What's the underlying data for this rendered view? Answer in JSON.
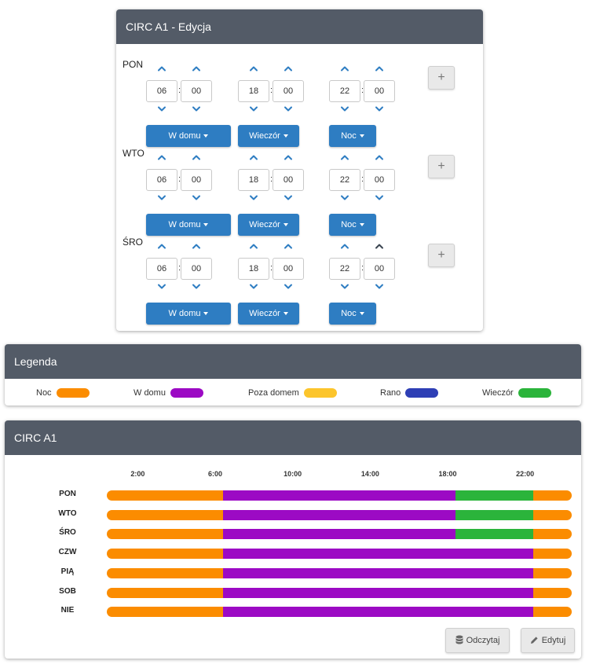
{
  "edit": {
    "title": "CIRC A1 - Edycja",
    "days": [
      {
        "label": "PON",
        "slots": [
          {
            "h": "06",
            "m": "00",
            "mode": "W domu"
          },
          {
            "h": "18",
            "m": "00",
            "mode": "Wieczór"
          },
          {
            "h": "22",
            "m": "00",
            "mode": "Noc"
          }
        ]
      },
      {
        "label": "WTO",
        "slots": [
          {
            "h": "06",
            "m": "00",
            "mode": "W domu"
          },
          {
            "h": "18",
            "m": "00",
            "mode": "Wieczór"
          },
          {
            "h": "22",
            "m": "00",
            "mode": "Noc"
          }
        ]
      },
      {
        "label": "ŚRO",
        "slots": [
          {
            "h": "06",
            "m": "00",
            "mode": "W domu"
          },
          {
            "h": "18",
            "m": "00",
            "mode": "Wieczór"
          },
          {
            "h": "22",
            "m": "00",
            "mode": "Noc"
          }
        ]
      }
    ],
    "colon": ":",
    "plus_label": "+"
  },
  "legend": {
    "title": "Legenda",
    "items": [
      {
        "label": "Noc",
        "color": "#fb8c00"
      },
      {
        "label": "W domu",
        "color": "#9c0ac4"
      },
      {
        "label": "Poza domem",
        "color": "#fcc52c"
      },
      {
        "label": "Rano",
        "color": "#2e3fb5"
      },
      {
        "label": "Wieczór",
        "color": "#2bb43b"
      }
    ]
  },
  "timeline": {
    "title": "CIRC A1",
    "hour_labels": [
      "2:00",
      "6:00",
      "10:00",
      "14:00",
      "18:00",
      "22:00"
    ],
    "hour_values": [
      2,
      6,
      10,
      14,
      18,
      22
    ],
    "rows": [
      {
        "label": "PON",
        "segments": [
          {
            "from": 0,
            "to": 6,
            "mode": "Noc"
          },
          {
            "from": 6,
            "to": 18,
            "mode": "W domu"
          },
          {
            "from": 18,
            "to": 22,
            "mode": "Wieczór"
          },
          {
            "from": 22,
            "to": 24,
            "mode": "Noc"
          }
        ]
      },
      {
        "label": "WTO",
        "segments": [
          {
            "from": 0,
            "to": 6,
            "mode": "Noc"
          },
          {
            "from": 6,
            "to": 18,
            "mode": "W domu"
          },
          {
            "from": 18,
            "to": 22,
            "mode": "Wieczór"
          },
          {
            "from": 22,
            "to": 24,
            "mode": "Noc"
          }
        ]
      },
      {
        "label": "ŚRO",
        "segments": [
          {
            "from": 0,
            "to": 6,
            "mode": "Noc"
          },
          {
            "from": 6,
            "to": 18,
            "mode": "W domu"
          },
          {
            "from": 18,
            "to": 22,
            "mode": "Wieczór"
          },
          {
            "from": 22,
            "to": 24,
            "mode": "Noc"
          }
        ]
      },
      {
        "label": "CZW",
        "segments": [
          {
            "from": 0,
            "to": 6,
            "mode": "Noc"
          },
          {
            "from": 6,
            "to": 22,
            "mode": "W domu"
          },
          {
            "from": 22,
            "to": 24,
            "mode": "Noc"
          }
        ]
      },
      {
        "label": "PIĄ",
        "segments": [
          {
            "from": 0,
            "to": 6,
            "mode": "Noc"
          },
          {
            "from": 6,
            "to": 22,
            "mode": "W domu"
          },
          {
            "from": 22,
            "to": 24,
            "mode": "Noc"
          }
        ]
      },
      {
        "label": "SOB",
        "segments": [
          {
            "from": 0,
            "to": 6,
            "mode": "Noc"
          },
          {
            "from": 6,
            "to": 22,
            "mode": "W domu"
          },
          {
            "from": 22,
            "to": 24,
            "mode": "Noc"
          }
        ]
      },
      {
        "label": "NIE",
        "segments": [
          {
            "from": 0,
            "to": 6,
            "mode": "Noc"
          },
          {
            "from": 6,
            "to": 22,
            "mode": "W domu"
          },
          {
            "from": 22,
            "to": 24,
            "mode": "Noc"
          }
        ]
      }
    ],
    "read_label": "Odczytaj",
    "edit_label": "Edytuj"
  }
}
